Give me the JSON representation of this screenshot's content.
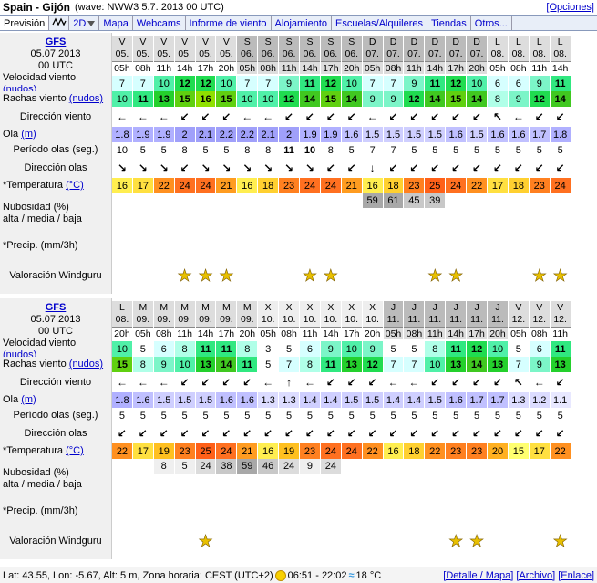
{
  "header": {
    "title": "Spain - Gijón",
    "model": "(wave: NWW3 5.7. 2013 00 UTC)",
    "options": "[Opciones]"
  },
  "tabs": [
    {
      "label": "Previsión",
      "icon": ""
    },
    {
      "label": "",
      "icon": "wave-graph-icon"
    },
    {
      "label": "2D",
      "icon": "chevron-down-icon"
    },
    {
      "label": "Mapa",
      "icon": ""
    },
    {
      "label": "Webcams",
      "icon": ""
    },
    {
      "label": "Informe de viento",
      "icon": ""
    },
    {
      "label": "Alojamiento",
      "icon": ""
    },
    {
      "label": "Escuelas/Alquileres",
      "icon": ""
    },
    {
      "label": "Tiendas",
      "icon": ""
    },
    {
      "label": "Otros...",
      "icon": ""
    }
  ],
  "labels": {
    "model": "GFS",
    "date": "05.07.2013",
    "utc": "00 UTC",
    "wind": "Velocidad viento",
    "wind_unit": "(nudos)",
    "gust": "Rachas viento",
    "gust_unit": "(nudos)",
    "wind_dir": "Dirección viento",
    "wave": "Ola",
    "wave_unit": "(m)",
    "period": "Período olas (seg.)",
    "wave_dir": "Dirección olas",
    "temp": "*Temperatura",
    "temp_unit": "(°C)",
    "cloud1": "Nubosidad (%)",
    "cloud2": "alta / media / baja",
    "precip": "*Precip. (mm/3h)",
    "rating": "Valoración Windguru"
  },
  "blocks": [
    {
      "days": [
        "V",
        "V",
        "V",
        "V",
        "V",
        "V",
        "S",
        "S",
        "S",
        "S",
        "S",
        "S",
        "D",
        "D",
        "D",
        "D",
        "D",
        "D",
        "L",
        "L",
        "L",
        "L"
      ],
      "dates": [
        "05.",
        "05.",
        "05.",
        "05.",
        "05.",
        "05.",
        "06.",
        "06.",
        "06.",
        "06.",
        "06.",
        "06.",
        "07.",
        "07.",
        "07.",
        "07.",
        "07.",
        "07.",
        "08.",
        "08.",
        "08.",
        "08."
      ],
      "hours": [
        "05h",
        "08h",
        "11h",
        "14h",
        "17h",
        "20h",
        "05h",
        "08h",
        "11h",
        "14h",
        "17h",
        "20h",
        "05h",
        "08h",
        "11h",
        "14h",
        "17h",
        "20h",
        "05h",
        "08h",
        "11h",
        "14h"
      ],
      "wind": [
        7,
        7,
        10,
        12,
        12,
        10,
        7,
        7,
        9,
        11,
        12,
        10,
        7,
        7,
        9,
        11,
        12,
        10,
        6,
        6,
        9,
        11
      ],
      "gust": [
        10,
        11,
        13,
        15,
        16,
        15,
        10,
        10,
        12,
        14,
        15,
        14,
        9,
        9,
        12,
        14,
        15,
        14,
        8,
        9,
        12,
        14
      ],
      "wind_dir": [
        "←",
        "←",
        "←",
        "↙",
        "↙",
        "↙",
        "←",
        "←",
        "↙",
        "↙",
        "↙",
        "↙",
        "←",
        "↙",
        "↙",
        "↙",
        "↙",
        "↙",
        "↖",
        "←",
        "↙",
        "↙"
      ],
      "wave": [
        "1.8",
        "1.9",
        "1.9",
        "2",
        "2.1",
        "2.2",
        "2.2",
        "2.1",
        "2",
        "1.9",
        "1.9",
        "1.6",
        "1.5",
        "1.5",
        "1.5",
        "1.5",
        "1.6",
        "1.5",
        "1.6",
        "1.6",
        "1.7",
        "1.8"
      ],
      "period": [
        10,
        5,
        5,
        8,
        5,
        5,
        8,
        8,
        11,
        10,
        8,
        5,
        7,
        7,
        5,
        5,
        5,
        5,
        5,
        5,
        5,
        5
      ],
      "period_bold": [
        8,
        9
      ],
      "wave_dir": [
        "↘",
        "↘",
        "↘",
        "↙",
        "↘",
        "↘",
        "↘",
        "↘",
        "↘",
        "↘",
        "↙",
        "↙",
        "↓",
        "↙",
        "↙",
        "↙",
        "↙",
        "↙",
        "↙",
        "↙",
        "↙",
        "↙"
      ],
      "temp": [
        16,
        17,
        22,
        24,
        24,
        21,
        16,
        18,
        23,
        24,
        24,
        21,
        16,
        18,
        23,
        25,
        24,
        22,
        17,
        18,
        23,
        24
      ],
      "cloud": [
        "",
        "",
        "",
        "",
        "",
        "",
        "",
        "",
        "",
        "",
        "",
        "",
        "59",
        "61",
        "45",
        "39",
        "",
        "",
        "",
        "",
        "",
        ""
      ],
      "stars": [
        "",
        "",
        "",
        "★",
        "★",
        "★",
        "",
        "",
        "",
        "★",
        "★",
        "",
        "",
        "",
        "",
        "★",
        "★",
        "",
        "",
        "",
        "★",
        "★"
      ]
    },
    {
      "days": [
        "L",
        "M",
        "M",
        "M",
        "M",
        "M",
        "M",
        "X",
        "X",
        "X",
        "X",
        "X",
        "X",
        "J",
        "J",
        "J",
        "J",
        "J",
        "J",
        "V",
        "V",
        "V"
      ],
      "dates": [
        "08.",
        "09.",
        "09.",
        "09.",
        "09.",
        "09.",
        "09.",
        "10.",
        "10.",
        "10.",
        "10.",
        "10.",
        "10.",
        "11.",
        "11.",
        "11.",
        "11.",
        "11.",
        "11.",
        "12.",
        "12.",
        "12."
      ],
      "hours": [
        "20h",
        "05h",
        "08h",
        "11h",
        "14h",
        "17h",
        "20h",
        "05h",
        "08h",
        "11h",
        "14h",
        "17h",
        "20h",
        "05h",
        "08h",
        "11h",
        "14h",
        "17h",
        "20h",
        "05h",
        "08h",
        "11h"
      ],
      "wind": [
        10,
        5,
        6,
        8,
        11,
        11,
        8,
        3,
        5,
        6,
        9,
        10,
        9,
        5,
        5,
        8,
        11,
        12,
        10,
        5,
        6,
        11
      ],
      "gust": [
        15,
        8,
        9,
        10,
        13,
        14,
        11,
        5,
        7,
        8,
        11,
        13,
        12,
        7,
        7,
        10,
        13,
        14,
        13,
        7,
        9,
        13
      ],
      "wind_dir": [
        "←",
        "←",
        "←",
        "↙",
        "↙",
        "↙",
        "↙",
        "←",
        "↑",
        "←",
        "↙",
        "↙",
        "↙",
        "←",
        "←",
        "↙",
        "↙",
        "↙",
        "↙",
        "↖",
        "←",
        "↙"
      ],
      "wave": [
        "1.8",
        "1.6",
        "1.5",
        "1.5",
        "1.5",
        "1.6",
        "1.6",
        "1.3",
        "1.3",
        "1.4",
        "1.4",
        "1.5",
        "1.5",
        "1.4",
        "1.4",
        "1.5",
        "1.6",
        "1.7",
        "1.7",
        "1.3",
        "1.2",
        "1.1"
      ],
      "period": [
        5,
        5,
        5,
        5,
        5,
        5,
        5,
        5,
        5,
        5,
        5,
        5,
        5,
        5,
        5,
        5,
        5,
        5,
        5,
        5,
        5,
        5
      ],
      "period_bold": [],
      "wave_dir": [
        "↙",
        "↙",
        "↙",
        "↙",
        "↙",
        "↙",
        "↙",
        "↙",
        "↙",
        "↙",
        "↙",
        "↙",
        "↙",
        "↙",
        "↙",
        "↙",
        "↙",
        "↙",
        "↙",
        "↙",
        "↙",
        "↙"
      ],
      "temp": [
        22,
        17,
        19,
        23,
        25,
        24,
        21,
        16,
        19,
        23,
        24,
        24,
        22,
        16,
        18,
        22,
        23,
        23,
        20,
        15,
        17,
        22
      ],
      "cloud": [
        "",
        "",
        "8",
        "5",
        "24",
        "38",
        "59",
        "46",
        "24",
        "9",
        "24",
        "",
        "",
        "",
        "",
        "",
        "",
        "",
        "",
        "",
        "",
        ""
      ],
      "stars": [
        "",
        "",
        "",
        "",
        "★",
        "",
        "",
        "",
        "",
        "",
        "",
        "",
        "",
        "",
        "",
        "",
        "★",
        "★",
        "",
        "",
        "",
        "★"
      ]
    }
  ],
  "footer": {
    "location": "Lat: 43.55, Lon: -5.67, Alt: 5 m, Zona horaria: CEST (UTC+2)",
    "sun": "06:51 - 22:02",
    "sea_temp": "18 °C",
    "links": [
      "[Detalle / Mapa]",
      "[Archivo]",
      "[Enlace]"
    ]
  },
  "colors": {
    "accent": "#0000cc",
    "tab_bg": "#e8eef8",
    "label_bg": "#f0f0f0"
  }
}
